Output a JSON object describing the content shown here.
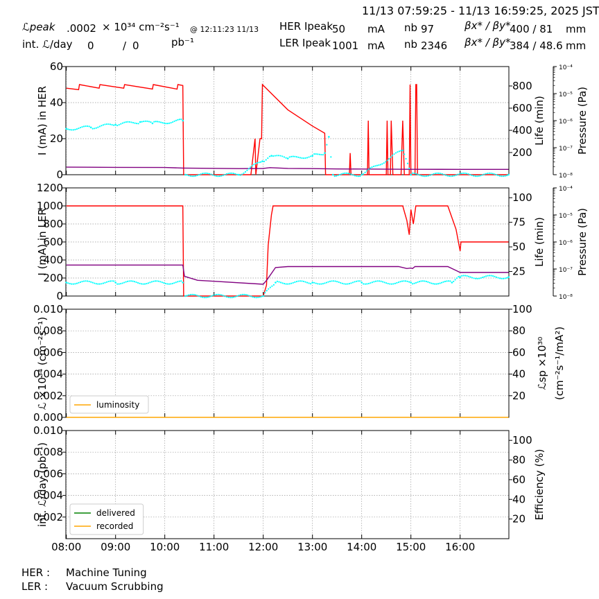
{
  "header": {
    "time_range": "11/13 07:59:25 - 11/13 16:59:25, 2025 JST",
    "lum_peak_label": "ℒpeak",
    "lum_peak_value": ".0002",
    "lum_peak_unit": "× 10³⁴ cm⁻²s⁻¹",
    "lum_peak_time": "@ 12:11:23 11/13",
    "int_lum_label": "int. ℒ/day",
    "int_lum_delivered": "0",
    "int_lum_recorded": "0",
    "int_lum_unit": "pb⁻¹",
    "her_label": "HER Ipeak",
    "her_current": "50",
    "her_unit": "mA",
    "her_nb_label": "nb",
    "her_nb": "97",
    "her_beta_label": "βx* / βy*",
    "her_beta": "400  / 81",
    "her_beta_unit": "mm",
    "ler_label": "LER Ipeak",
    "ler_current": "1001",
    "ler_unit": "mA",
    "ler_nb_label": "nb",
    "ler_nb": "2346",
    "ler_beta_label": "βx* / βy*",
    "ler_beta": "384  / 48.6",
    "ler_beta_unit": "mm"
  },
  "status": {
    "her_label": "HER :",
    "her_value": "Machine Tuning",
    "ler_label": "LER :",
    "ler_value": "Vacuum Scrubbing"
  },
  "colors": {
    "current": "#ff0000",
    "life": "#800080",
    "pressure": "#00ffff",
    "luminosity": "#ffa500",
    "delivered": "#008000",
    "recorded": "#ffa500",
    "grid": "#999999"
  },
  "chart_data": {
    "type": "line",
    "x_ticks": [
      "08:00",
      "09:00",
      "10:00",
      "11:00",
      "12:00",
      "13:00",
      "14:00",
      "15:00",
      "16:00"
    ],
    "x_range": [
      "07:59:25",
      "16:59:25"
    ],
    "panels": [
      {
        "name": "HER",
        "ylabel_left": "I (mA) in HER",
        "ylim_left": [
          0,
          60
        ],
        "yticks_left": [
          "0",
          "20",
          "40",
          "60"
        ],
        "ylabel_right": "Life (min)",
        "ylim_right": [
          0,
          975
        ],
        "yticks_right": [
          "200",
          "400",
          "600",
          "800"
        ],
        "ylabel_pressure": "Pressure (Pa)",
        "pressure_ticks": [
          "10⁻⁸",
          "10⁻⁷",
          "10⁻⁶",
          "10⁻⁵",
          "10⁻⁴"
        ],
        "series": [
          {
            "color": "#ff0000",
            "axis": "left",
            "points": [
              [
                "08:00",
                48
              ],
              [
                "08:15",
                47.2
              ],
              [
                "08:16",
                50
              ],
              [
                "08:40",
                48
              ],
              [
                "08:41",
                50
              ],
              [
                "09:10",
                48
              ],
              [
                "09:11",
                50
              ],
              [
                "09:45",
                47.5
              ],
              [
                "09:46",
                50
              ],
              [
                "10:15",
                47.5
              ],
              [
                "10:16",
                50
              ],
              [
                "10:22",
                49.5
              ],
              [
                "10:23",
                0
              ],
              [
                "11:45",
                0
              ],
              [
                "11:50",
                20
              ],
              [
                "11:51",
                0
              ],
              [
                "11:56",
                20
              ],
              [
                "11:58",
                20
              ],
              [
                "11:59",
                50
              ],
              [
                "12:30",
                36
              ],
              [
                "13:00",
                27
              ],
              [
                "13:15",
                23
              ],
              [
                "13:16",
                0
              ],
              [
                "13:45",
                0
              ],
              [
                "13:46",
                12
              ],
              [
                "13:47",
                0
              ],
              [
                "14:07",
                0
              ],
              [
                "14:08",
                30
              ],
              [
                "14:09",
                0
              ],
              [
                "14:30",
                0
              ],
              [
                "14:31",
                30
              ],
              [
                "14:32",
                0
              ],
              [
                "14:35",
                0
              ],
              [
                "14:36",
                30
              ],
              [
                "14:38",
                0
              ],
              [
                "14:48",
                0
              ],
              [
                "14:50",
                30
              ],
              [
                "14:52",
                0
              ],
              [
                "14:58",
                0
              ],
              [
                "14:59",
                50
              ],
              [
                "15:00",
                0
              ],
              [
                "15:05",
                0
              ],
              [
                "15:06",
                50
              ],
              [
                "15:07",
                50
              ],
              [
                "15:08",
                0
              ],
              [
                "16:59",
                0
              ]
            ]
          },
          {
            "color": "#800080",
            "axis": "right",
            "points": [
              [
                "08:00",
                68
              ],
              [
                "09:00",
                66
              ],
              [
                "10:00",
                65
              ],
              [
                "10:22",
                60
              ],
              [
                "11:30",
                55
              ],
              [
                "12:00",
                56
              ],
              [
                "12:08",
                64
              ],
              [
                "12:30",
                57
              ],
              [
                "13:00",
                55
              ],
              [
                "13:30",
                52
              ],
              [
                "14:00",
                51
              ],
              [
                "15:00",
                49
              ],
              [
                "16:00",
                48
              ],
              [
                "16:59",
                48
              ]
            ]
          },
          {
            "color": "#00ffff",
            "axis": "pressure",
            "style": "dots",
            "points": [
              [
                "08:00",
                -6.3
              ],
              [
                "08:30",
                -6.25
              ],
              [
                "09:00",
                -6.15
              ],
              [
                "09:30",
                -6.05
              ],
              [
                "09:45",
                -6.1
              ],
              [
                "10:22",
                -6.0
              ],
              [
                "10:25",
                -8.0
              ],
              [
                "11:30",
                -8.0
              ],
              [
                "11:59",
                -7.5
              ],
              [
                "12:10",
                -7.3
              ],
              [
                "12:30",
                -7.4
              ],
              [
                "13:00",
                -7.3
              ],
              [
                "13:15",
                -7.2
              ],
              [
                "13:20",
                -6.6
              ],
              [
                "13:25",
                -8.0
              ],
              [
                "14:00",
                -8.0
              ],
              [
                "14:50",
                -7.1
              ],
              [
                "15:00",
                -8.0
              ],
              [
                "16:59",
                -8.0
              ]
            ]
          }
        ]
      },
      {
        "name": "LER",
        "ylabel_left": "I (mA) in LER",
        "ylim_left": [
          0,
          1200
        ],
        "yticks_left": [
          "0",
          "200",
          "400",
          "600",
          "800",
          "1000",
          "1200"
        ],
        "ylabel_right": "Life (min)",
        "ylim_right": [
          0,
          110
        ],
        "yticks_right": [
          "25",
          "50",
          "75",
          "100"
        ],
        "ylabel_pressure": "Pressure (Pa)",
        "pressure_ticks": [
          "10⁻⁸",
          "10⁻⁷",
          "10⁻⁶",
          "10⁻⁵",
          "10⁻⁴"
        ],
        "series": [
          {
            "color": "#ff0000",
            "axis": "left",
            "points": [
              [
                "08:00",
                1000
              ],
              [
                "10:22",
                1000
              ],
              [
                "10:23",
                0
              ],
              [
                "12:00",
                0
              ],
              [
                "12:04",
                120
              ],
              [
                "12:06",
                560
              ],
              [
                "12:10",
                900
              ],
              [
                "12:12",
                1000
              ],
              [
                "14:50",
                1000
              ],
              [
                "14:55",
                840
              ],
              [
                "14:58",
                680
              ],
              [
                "15:00",
                960
              ],
              [
                "15:03",
                800
              ],
              [
                "15:06",
                1000
              ],
              [
                "15:45",
                1000
              ],
              [
                "15:55",
                740
              ],
              [
                "16:00",
                500
              ],
              [
                "16:01",
                600
              ],
              [
                "16:59",
                600
              ]
            ]
          },
          {
            "color": "#800080",
            "axis": "right",
            "points": [
              [
                "08:00",
                31.5
              ],
              [
                "10:22",
                31.5
              ],
              [
                "10:24",
                20
              ],
              [
                "10:40",
                16
              ],
              [
                "11:00",
                15
              ],
              [
                "12:00",
                12
              ],
              [
                "12:05",
                17
              ],
              [
                "12:15",
                29
              ],
              [
                "12:30",
                30
              ],
              [
                "13:00",
                30
              ],
              [
                "14:45",
                30
              ],
              [
                "14:55",
                28
              ],
              [
                "15:00",
                28.5
              ],
              [
                "15:02",
                28
              ],
              [
                "15:05",
                30
              ],
              [
                "15:45",
                30
              ],
              [
                "15:55",
                26
              ],
              [
                "16:00",
                24
              ],
              [
                "16:59",
                24
              ]
            ]
          },
          {
            "color": "#00ffff",
            "axis": "pressure",
            "style": "dots",
            "points": [
              [
                "08:00",
                -7.5
              ],
              [
                "09:00",
                -7.5
              ],
              [
                "10:22",
                -7.5
              ],
              [
                "10:25",
                -8.0
              ],
              [
                "12:00",
                -8.0
              ],
              [
                "12:15",
                -7.5
              ],
              [
                "13:00",
                -7.5
              ],
              [
                "14:00",
                -7.5
              ],
              [
                "15:00",
                -7.5
              ],
              [
                "15:50",
                -7.5
              ],
              [
                "16:00",
                -7.3
              ],
              [
                "16:59",
                -7.3
              ]
            ]
          }
        ]
      },
      {
        "name": "Luminosity",
        "ylabel_left": "ℒ ×10³⁴ (cm⁻²s⁻¹)",
        "ylim_left": [
          0,
          0.01
        ],
        "yticks_left": [
          "0.000",
          "0.002",
          "0.004",
          "0.006",
          "0.008",
          "0.010"
        ],
        "ylabel_right_line1": "ℒsp ×10³⁰",
        "ylabel_right_line2": "(cm⁻²s⁻¹/mA²)",
        "ylim_right": [
          0,
          100
        ],
        "yticks_right": [
          "20",
          "40",
          "60",
          "80",
          "100"
        ],
        "legend": [
          "luminosity"
        ],
        "legend_position": "lower left",
        "series": [
          {
            "name": "luminosity",
            "color": "#ffa500",
            "points": [
              [
                "08:00",
                0
              ],
              [
                "16:59",
                0
              ]
            ]
          }
        ]
      },
      {
        "name": "Integrated",
        "ylabel_left": "int. ℒ/day (pb⁻¹)",
        "ylim_left": [
          0,
          0.01
        ],
        "yticks_left": [
          "0.002",
          "0.004",
          "0.006",
          "0.008",
          "0.010"
        ],
        "ylabel_right": "Efficiency (%)",
        "ylim_right": [
          0,
          110
        ],
        "yticks_right": [
          "20",
          "40",
          "60",
          "80",
          "100"
        ],
        "legend": [
          "delivered",
          "recorded"
        ],
        "legend_position": "lower left",
        "series": [
          {
            "name": "delivered",
            "color": "#008000",
            "points": []
          },
          {
            "name": "recorded",
            "color": "#ffa500",
            "points": []
          }
        ]
      }
    ]
  }
}
